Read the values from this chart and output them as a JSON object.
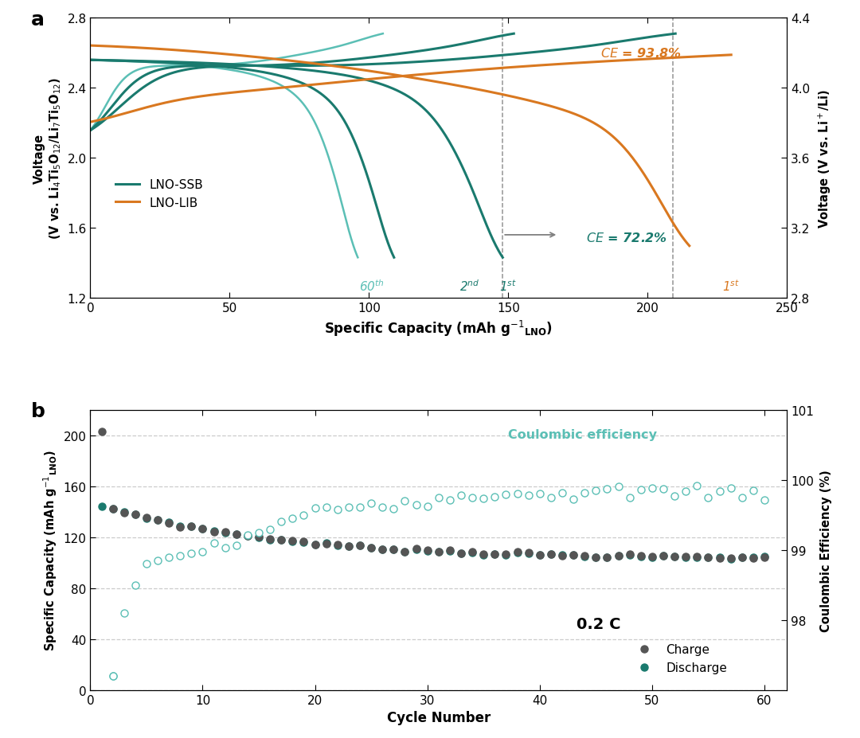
{
  "panel_a": {
    "xlabel": "Specific Capacity (mAh g$^{-1}$$_\\mathregular{LNO}$)",
    "ylabel_left": "Voltage\n(V vs. Li$_4$Ti$_5$O$_{12}$/Li$_7$Ti$_5$O$_{12}$)",
    "ylabel_right": "Voltage (V vs. Li$^+$/Li)",
    "xlim": [
      0,
      250
    ],
    "ylim_left": [
      1.2,
      2.8
    ],
    "ylim_right": [
      2.8,
      4.4
    ],
    "xticks": [
      0,
      50,
      100,
      150,
      200,
      250
    ],
    "yticks_left": [
      1.2,
      1.6,
      2.0,
      2.4,
      2.8
    ],
    "yticks_right": [
      2.8,
      3.2,
      3.6,
      4.0,
      4.4
    ],
    "color_ssb": "#1a7a6e",
    "color_ssb_light": "#5bbfb5",
    "color_lib": "#d97820",
    "dashed_x1": 148,
    "dashed_x2": 209
  },
  "panel_b": {
    "xlabel": "Cycle Number",
    "ylabel_left": "Specific Capacity (mAh g$^{-1}$$_\\mathregular{LNO}$)",
    "ylabel_right": "Coulombic Efficiency (%)",
    "xlim": [
      0,
      62
    ],
    "ylim_left": [
      0,
      220
    ],
    "ylim_right": [
      98,
      101
    ],
    "xticks": [
      0,
      10,
      20,
      30,
      40,
      50,
      60
    ],
    "yticks_left": [
      0,
      40,
      80,
      120,
      160,
      200
    ],
    "yticks_right": [
      98,
      99,
      100,
      101
    ],
    "color_discharge": "#1a7a6e",
    "color_charge": "#555555",
    "color_ce": "#5bbfb5",
    "rate_label": "0.2 C"
  }
}
